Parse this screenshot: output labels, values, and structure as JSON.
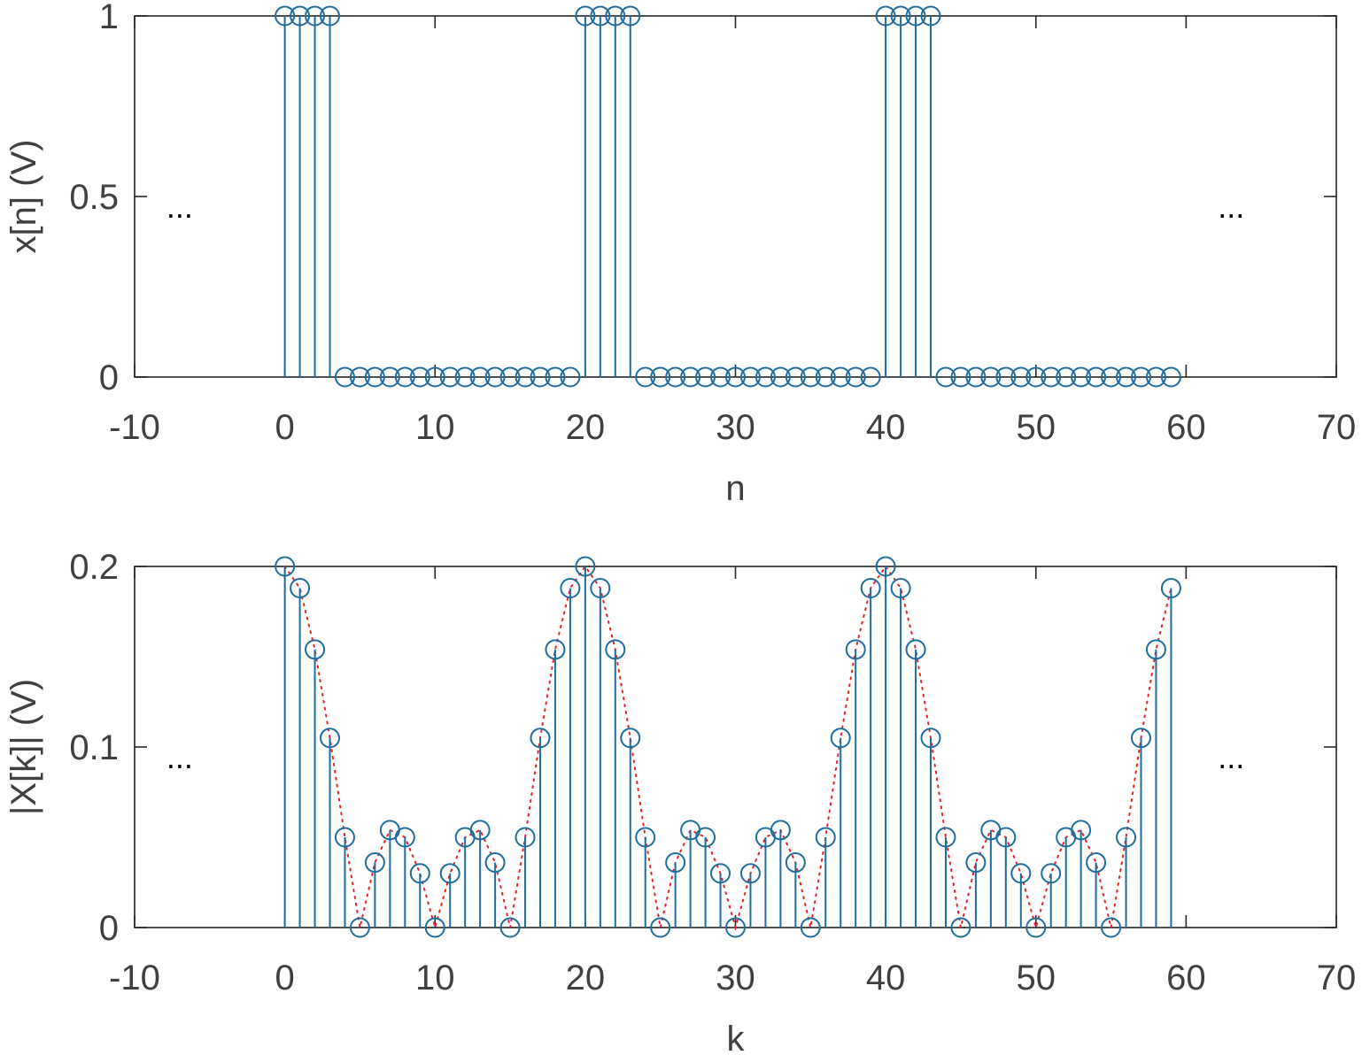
{
  "chart_data": [
    {
      "type": "stem",
      "xlabel": "n",
      "ylabel": "x[n] (V)",
      "xlim": [
        -10,
        70
      ],
      "ylim": [
        0,
        1
      ],
      "xticks": [
        "-10",
        "0",
        "10",
        "20",
        "30",
        "40",
        "50",
        "60",
        "70"
      ],
      "yticks": [
        "0",
        "0.5",
        "1"
      ],
      "annotations": [
        "...",
        "..."
      ],
      "series": [
        {
          "color": "#1f6d9e",
          "x": [
            0,
            1,
            2,
            3,
            4,
            5,
            6,
            7,
            8,
            9,
            10,
            11,
            12,
            13,
            14,
            15,
            16,
            17,
            18,
            19,
            20,
            21,
            22,
            23,
            24,
            25,
            26,
            27,
            28,
            29,
            30,
            31,
            32,
            33,
            34,
            35,
            36,
            37,
            38,
            39,
            40,
            41,
            42,
            43,
            44,
            45,
            46,
            47,
            48,
            49,
            50,
            51,
            52,
            53,
            54,
            55,
            56,
            57,
            58,
            59
          ],
          "values": [
            1,
            1,
            1,
            1,
            0,
            0,
            0,
            0,
            0,
            0,
            0,
            0,
            0,
            0,
            0,
            0,
            0,
            0,
            0,
            0,
            1,
            1,
            1,
            1,
            0,
            0,
            0,
            0,
            0,
            0,
            0,
            0,
            0,
            0,
            0,
            0,
            0,
            0,
            0,
            0,
            1,
            1,
            1,
            1,
            0,
            0,
            0,
            0,
            0,
            0,
            0,
            0,
            0,
            0,
            0,
            0,
            0,
            0,
            0,
            0
          ]
        }
      ],
      "grid": false,
      "box": true
    },
    {
      "type": "stem",
      "xlabel": "k",
      "ylabel": "|X[k]| (V)",
      "xlim": [
        -10,
        70
      ],
      "ylim": [
        0,
        0.2
      ],
      "xticks": [
        "-10",
        "0",
        "10",
        "20",
        "30",
        "40",
        "50",
        "60",
        "70"
      ],
      "yticks": [
        "0",
        "0.1",
        "0.2"
      ],
      "annotations": [
        "...",
        "..."
      ],
      "series": [
        {
          "color": "#1f6d9e",
          "x": [
            0,
            1,
            2,
            3,
            4,
            5,
            6,
            7,
            8,
            9,
            10,
            11,
            12,
            13,
            14,
            15,
            16,
            17,
            18,
            19,
            20,
            21,
            22,
            23,
            24,
            25,
            26,
            27,
            28,
            29,
            30,
            31,
            32,
            33,
            34,
            35,
            36,
            37,
            38,
            39,
            40,
            41,
            42,
            43,
            44,
            45,
            46,
            47,
            48,
            49,
            50,
            51,
            52,
            53,
            54,
            55,
            56,
            57,
            58,
            59
          ],
          "values": [
            0.2,
            0.188,
            0.154,
            0.105,
            0.05,
            0,
            0.036,
            0.054,
            0.05,
            0.03,
            0,
            0.03,
            0.05,
            0.054,
            0.036,
            0,
            0.05,
            0.105,
            0.154,
            0.188,
            0.2,
            0.188,
            0.154,
            0.105,
            0.05,
            0,
            0.036,
            0.054,
            0.05,
            0.03,
            0,
            0.03,
            0.05,
            0.054,
            0.036,
            0,
            0.05,
            0.105,
            0.154,
            0.188,
            0.2,
            0.188,
            0.154,
            0.105,
            0.05,
            0,
            0.036,
            0.054,
            0.05,
            0.03,
            0,
            0.03,
            0.05,
            0.054,
            0.036,
            0,
            0.05,
            0.105,
            0.154,
            0.188
          ]
        },
        {
          "style": "dotted",
          "color": "#e8202a",
          "envelope_of": "values above"
        }
      ],
      "grid": false,
      "box": true
    }
  ]
}
